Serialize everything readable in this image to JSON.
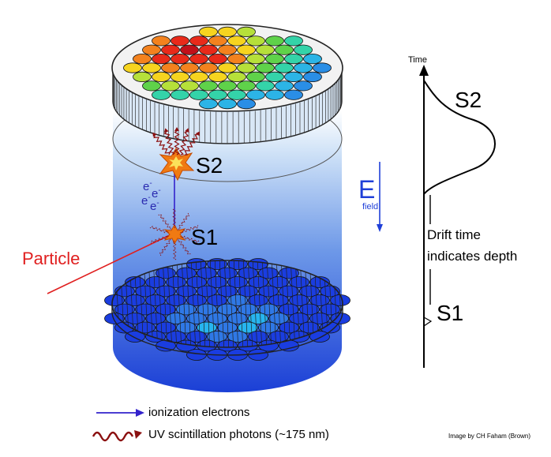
{
  "labels": {
    "s2": "S2",
    "s1": "S1",
    "particle": "Particle",
    "efield_main": "E",
    "efield_sub": "field",
    "time": "Time",
    "s2_pulse": "S2",
    "drift_line1": "Drift time",
    "drift_line2": "indicates depth",
    "s1_pulse": "S1"
  },
  "electron_symbol": "e",
  "electron_charge": "-",
  "legend": {
    "electrons": "ionization electrons",
    "photons": "UV scintillation photons (~175 nm)"
  },
  "credit": "Image by CH Faham (Brown)",
  "colors": {
    "particle": "#e01f1f",
    "efield": "#1f3fd8",
    "electron_arrow": "#3322cc",
    "photon": "#8b1010",
    "pmt_bottom": "#1a3de0",
    "pmt_highlight": "#27b5ef"
  },
  "icons": [
    "electron-arrow-icon",
    "photon-wave-icon",
    "efield-arrow-icon",
    "flash-star-icon"
  ]
}
